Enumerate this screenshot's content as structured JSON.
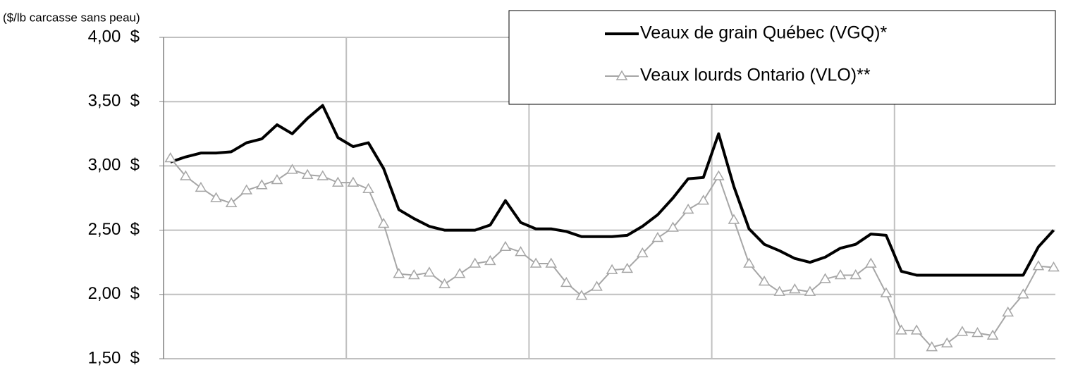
{
  "chart_data": {
    "type": "line",
    "y_axis_label": "($/lb carcasse sans peau)",
    "categories": [
      null,
      null,
      null,
      null,
      null,
      null,
      null,
      null,
      null,
      null,
      null,
      null,
      null,
      null,
      null,
      null,
      null,
      null,
      null,
      null,
      null,
      null,
      null,
      null,
      null,
      null,
      null,
      null,
      null,
      null,
      null,
      null,
      null,
      null,
      null,
      null,
      null,
      null,
      null,
      null,
      null,
      null,
      null,
      null,
      null,
      null,
      null,
      null,
      null,
      null,
      null,
      null,
      null,
      null,
      null,
      null,
      null,
      null,
      null
    ],
    "series": [
      {
        "name": "Veaux de grain Québec (VGQ)*",
        "color": "#000000",
        "marker": "none",
        "values": [
          3.03,
          3.07,
          3.1,
          3.1,
          3.11,
          3.18,
          3.21,
          3.32,
          3.25,
          3.37,
          3.47,
          3.22,
          3.15,
          3.18,
          2.98,
          2.66,
          2.59,
          2.53,
          2.5,
          2.5,
          2.5,
          2.54,
          2.73,
          2.56,
          2.51,
          2.51,
          2.49,
          2.45,
          2.45,
          2.45,
          2.46,
          2.53,
          2.62,
          2.75,
          2.9,
          2.91,
          3.25,
          2.84,
          2.51,
          2.39,
          2.34,
          2.28,
          2.25,
          2.29,
          2.36,
          2.39,
          2.47,
          2.46,
          2.18,
          2.15,
          2.15,
          2.15,
          2.15,
          2.15,
          2.15,
          2.15,
          2.15,
          2.37,
          2.5
        ]
      },
      {
        "name": "Veaux lourds Ontario (VLO)**",
        "color": "#a6a6a6",
        "marker": "triangle",
        "values": [
          3.06,
          2.92,
          2.83,
          2.75,
          2.71,
          2.81,
          2.85,
          2.89,
          2.97,
          2.93,
          2.92,
          2.87,
          2.87,
          2.82,
          2.55,
          2.16,
          2.15,
          2.17,
          2.08,
          2.16,
          2.24,
          2.26,
          2.37,
          2.33,
          2.24,
          2.24,
          2.09,
          1.99,
          2.06,
          2.19,
          2.2,
          2.32,
          2.44,
          2.52,
          2.66,
          2.73,
          2.92,
          2.58,
          2.24,
          2.1,
          2.02,
          2.04,
          2.02,
          2.12,
          2.15,
          2.15,
          2.24,
          2.01,
          1.72,
          1.72,
          1.59,
          1.62,
          1.71,
          1.7,
          1.68,
          1.86,
          2.0,
          2.22,
          2.21
        ]
      }
    ],
    "ylim": [
      1.5,
      4.0
    ],
    "yticks": [
      {
        "value": 1.5,
        "label": "1,50  $"
      },
      {
        "value": 2.0,
        "label": "2,00  $"
      },
      {
        "value": 2.5,
        "label": "2,50  $"
      },
      {
        "value": 3.0,
        "label": "3,00  $"
      },
      {
        "value": 3.5,
        "label": "3,50  $"
      },
      {
        "value": 4.0,
        "label": "4,00  $"
      }
    ],
    "grid": true,
    "legend": "top-right"
  }
}
